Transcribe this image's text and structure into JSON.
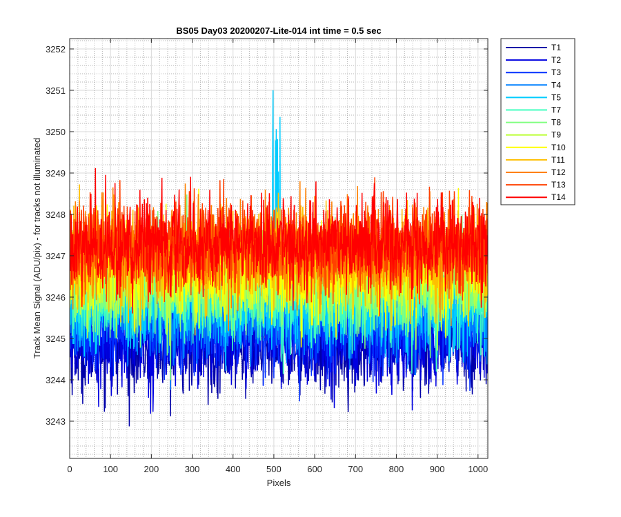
{
  "chart_data": {
    "type": "line",
    "title": "BS05 Day03 20200207-Lite-014 int time = 0.5 sec",
    "xlabel": "Pixels",
    "ylabel": "Track Mean Signal (ADU/pix) - for tracks not illuminated",
    "xlim": [
      0,
      1024
    ],
    "ylim": [
      3242.1,
      3252.25
    ],
    "xticks": [
      "0",
      "100",
      "200",
      "300",
      "400",
      "500",
      "600",
      "700",
      "800",
      "900",
      "1000"
    ],
    "yticks": [
      "3243",
      "3244",
      "3245",
      "3246",
      "3247",
      "3248",
      "3249",
      "3250",
      "3251",
      "3252"
    ],
    "grid": true,
    "minor_grid": true,
    "legend_position": "outside-top-right",
    "series": [
      {
        "name": "T1",
        "color": "#0000A8",
        "mean": 3244.8,
        "noise": 0.55
      },
      {
        "name": "T2",
        "color": "#0000E0",
        "mean": 3245.0,
        "noise": 0.55
      },
      {
        "name": "T3",
        "color": "#0030FF",
        "mean": 3245.3,
        "noise": 0.55
      },
      {
        "name": "T4",
        "color": "#0080FF",
        "mean": 3245.6,
        "noise": 0.55
      },
      {
        "name": "T5",
        "color": "#00CCFF",
        "mean": 3245.8,
        "noise": 0.55
      },
      {
        "name": "T7",
        "color": "#40FFBF",
        "mean": 3246.1,
        "noise": 0.55
      },
      {
        "name": "T8",
        "color": "#80FF80",
        "mean": 3246.3,
        "noise": 0.55
      },
      {
        "name": "T9",
        "color": "#BFFF40",
        "mean": 3246.5,
        "noise": 0.55
      },
      {
        "name": "T10",
        "color": "#FFFF00",
        "mean": 3246.7,
        "noise": 0.55
      },
      {
        "name": "T11",
        "color": "#FFBF00",
        "mean": 3246.9,
        "noise": 0.55
      },
      {
        "name": "T12",
        "color": "#FF8000",
        "mean": 3247.1,
        "noise": 0.55
      },
      {
        "name": "T13",
        "color": "#FF4000",
        "mean": 3247.3,
        "noise": 0.55
      },
      {
        "name": "T14",
        "color": "#FF0000",
        "mean": 3247.3,
        "noise": 0.55
      }
    ]
  }
}
